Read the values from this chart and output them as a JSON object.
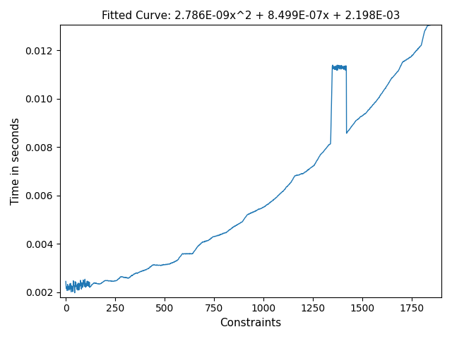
{
  "title": "Fitted Curve: 2.786E-09x^2 + 8.499E-07x + 2.198E-03",
  "xlabel": "Constraints",
  "ylabel": "Time in seconds",
  "line_color": "#1f77b4",
  "a": 2.786e-09,
  "b": 8.499e-07,
  "c": 0.002198,
  "x_min": 0,
  "x_max": 1870,
  "n_points": 1870,
  "ylim_min": 0.0018,
  "ylim_max": 0.01305,
  "xlim_min": -30,
  "xlim_max": 1900
}
